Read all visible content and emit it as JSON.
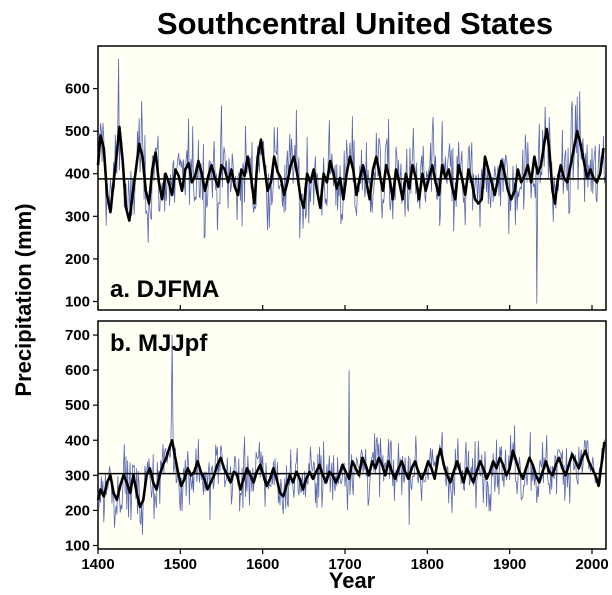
{
  "chart_data": {
    "title": "Southcentral United States",
    "xlabel": "Year",
    "ylabel": "Precipitation (mm)",
    "xlim": [
      1400,
      2017
    ],
    "x_ticks": [
      "1400",
      "1500",
      "1600",
      "1700",
      "1800",
      "1900",
      "2000"
    ],
    "panels": [
      {
        "type": "line",
        "label": "a. DJFMA",
        "ylim": [
          80,
          700
        ],
        "y_ticks": [
          "100",
          "200",
          "300",
          "400",
          "500",
          "600"
        ],
        "mean": 388,
        "annual_color": "#5a68b0",
        "smoothed_color": "#000000",
        "smoothed": [
          [
            1400,
            420
          ],
          [
            1403,
            490
          ],
          [
            1407,
            460
          ],
          [
            1411,
            350
          ],
          [
            1415,
            310
          ],
          [
            1419,
            380
          ],
          [
            1423,
            450
          ],
          [
            1426,
            510
          ],
          [
            1430,
            430
          ],
          [
            1434,
            320
          ],
          [
            1438,
            290
          ],
          [
            1442,
            350
          ],
          [
            1446,
            410
          ],
          [
            1450,
            470
          ],
          [
            1454,
            440
          ],
          [
            1458,
            360
          ],
          [
            1462,
            330
          ],
          [
            1466,
            410
          ],
          [
            1470,
            450
          ],
          [
            1474,
            380
          ],
          [
            1478,
            340
          ],
          [
            1482,
            400
          ],
          [
            1486,
            380
          ],
          [
            1490,
            350
          ],
          [
            1494,
            410
          ],
          [
            1498,
            395
          ],
          [
            1502,
            360
          ],
          [
            1506,
            410
          ],
          [
            1510,
            425
          ],
          [
            1514,
            380
          ],
          [
            1518,
            395
          ],
          [
            1522,
            430
          ],
          [
            1526,
            400
          ],
          [
            1530,
            360
          ],
          [
            1534,
            395
          ],
          [
            1538,
            420
          ],
          [
            1542,
            390
          ],
          [
            1546,
            370
          ],
          [
            1550,
            420
          ],
          [
            1554,
            410
          ],
          [
            1558,
            380
          ],
          [
            1562,
            410
          ],
          [
            1566,
            370
          ],
          [
            1570,
            350
          ],
          [
            1574,
            410
          ],
          [
            1578,
            395
          ],
          [
            1582,
            440
          ],
          [
            1586,
            390
          ],
          [
            1590,
            330
          ],
          [
            1594,
            440
          ],
          [
            1598,
            480
          ],
          [
            1602,
            420
          ],
          [
            1606,
            360
          ],
          [
            1610,
            380
          ],
          [
            1614,
            440
          ],
          [
            1618,
            405
          ],
          [
            1622,
            390
          ],
          [
            1626,
            350
          ],
          [
            1630,
            380
          ],
          [
            1634,
            420
          ],
          [
            1638,
            440
          ],
          [
            1642,
            400
          ],
          [
            1646,
            345
          ],
          [
            1650,
            320
          ],
          [
            1654,
            400
          ],
          [
            1658,
            380
          ],
          [
            1662,
            410
          ],
          [
            1666,
            360
          ],
          [
            1670,
            320
          ],
          [
            1674,
            400
          ],
          [
            1678,
            380
          ],
          [
            1682,
            430
          ],
          [
            1686,
            400
          ],
          [
            1690,
            365
          ],
          [
            1694,
            390
          ],
          [
            1698,
            340
          ],
          [
            1702,
            400
          ],
          [
            1706,
            440
          ],
          [
            1710,
            410
          ],
          [
            1714,
            350
          ],
          [
            1718,
            390
          ],
          [
            1722,
            420
          ],
          [
            1726,
            380
          ],
          [
            1730,
            340
          ],
          [
            1734,
            410
          ],
          [
            1738,
            440
          ],
          [
            1742,
            400
          ],
          [
            1746,
            360
          ],
          [
            1750,
            420
          ],
          [
            1754,
            390
          ],
          [
            1758,
            340
          ],
          [
            1762,
            410
          ],
          [
            1766,
            380
          ],
          [
            1770,
            340
          ],
          [
            1774,
            400
          ],
          [
            1778,
            365
          ],
          [
            1782,
            420
          ],
          [
            1786,
            390
          ],
          [
            1790,
            340
          ],
          [
            1794,
            400
          ],
          [
            1798,
            360
          ],
          [
            1802,
            390
          ],
          [
            1806,
            420
          ],
          [
            1810,
            380
          ],
          [
            1814,
            350
          ],
          [
            1818,
            420
          ],
          [
            1822,
            390
          ],
          [
            1826,
            410
          ],
          [
            1830,
            370
          ],
          [
            1834,
            340
          ],
          [
            1838,
            420
          ],
          [
            1842,
            390
          ],
          [
            1846,
            350
          ],
          [
            1850,
            410
          ],
          [
            1854,
            380
          ],
          [
            1858,
            340
          ],
          [
            1862,
            330
          ],
          [
            1866,
            340
          ],
          [
            1870,
            440
          ],
          [
            1874,
            410
          ],
          [
            1878,
            380
          ],
          [
            1882,
            350
          ],
          [
            1886,
            390
          ],
          [
            1890,
            430
          ],
          [
            1894,
            400
          ],
          [
            1898,
            360
          ],
          [
            1902,
            340
          ],
          [
            1906,
            360
          ],
          [
            1910,
            410
          ],
          [
            1914,
            380
          ],
          [
            1918,
            395
          ],
          [
            1922,
            420
          ],
          [
            1926,
            380
          ],
          [
            1930,
            440
          ],
          [
            1934,
            400
          ],
          [
            1938,
            420
          ],
          [
            1942,
            470
          ],
          [
            1945,
            505
          ],
          [
            1948,
            460
          ],
          [
            1952,
            360
          ],
          [
            1955,
            330
          ],
          [
            1958,
            380
          ],
          [
            1962,
            420
          ],
          [
            1966,
            390
          ],
          [
            1970,
            380
          ],
          [
            1974,
            420
          ],
          [
            1978,
            460
          ],
          [
            1982,
            500
          ],
          [
            1986,
            470
          ],
          [
            1990,
            430
          ],
          [
            1994,
            390
          ],
          [
            1998,
            410
          ],
          [
            2002,
            390
          ],
          [
            2006,
            380
          ],
          [
            2010,
            400
          ],
          [
            2014,
            460
          ]
        ]
      },
      {
        "type": "line",
        "label": "b. MJJpf",
        "ylim": [
          90,
          740
        ],
        "y_ticks": [
          "100",
          "200",
          "300",
          "400",
          "500",
          "600",
          "700"
        ],
        "mean": 305,
        "annual_color": "#5a68b0",
        "smoothed_color": "#000000",
        "smoothed": [
          [
            1400,
            230
          ],
          [
            1403,
            260
          ],
          [
            1407,
            240
          ],
          [
            1411,
            280
          ],
          [
            1415,
            300
          ],
          [
            1419,
            250
          ],
          [
            1423,
            230
          ],
          [
            1427,
            270
          ],
          [
            1431,
            300
          ],
          [
            1435,
            280
          ],
          [
            1439,
            250
          ],
          [
            1443,
            300
          ],
          [
            1447,
            250
          ],
          [
            1451,
            210
          ],
          [
            1455,
            230
          ],
          [
            1459,
            300
          ],
          [
            1463,
            320
          ],
          [
            1467,
            280
          ],
          [
            1471,
            260
          ],
          [
            1475,
            300
          ],
          [
            1479,
            330
          ],
          [
            1483,
            350
          ],
          [
            1487,
            380
          ],
          [
            1490,
            400
          ],
          [
            1493,
            360
          ],
          [
            1497,
            310
          ],
          [
            1501,
            270
          ],
          [
            1505,
            290
          ],
          [
            1509,
            320
          ],
          [
            1513,
            300
          ],
          [
            1517,
            310
          ],
          [
            1521,
            340
          ],
          [
            1525,
            310
          ],
          [
            1529,
            290
          ],
          [
            1533,
            260
          ],
          [
            1537,
            280
          ],
          [
            1541,
            300
          ],
          [
            1545,
            330
          ],
          [
            1549,
            350
          ],
          [
            1553,
            320
          ],
          [
            1557,
            300
          ],
          [
            1561,
            280
          ],
          [
            1565,
            310
          ],
          [
            1569,
            300
          ],
          [
            1573,
            260
          ],
          [
            1577,
            290
          ],
          [
            1581,
            320
          ],
          [
            1585,
            300
          ],
          [
            1589,
            280
          ],
          [
            1593,
            310
          ],
          [
            1597,
            330
          ],
          [
            1601,
            300
          ],
          [
            1605,
            270
          ],
          [
            1609,
            290
          ],
          [
            1613,
            320
          ],
          [
            1617,
            290
          ],
          [
            1621,
            250
          ],
          [
            1625,
            240
          ],
          [
            1629,
            270
          ],
          [
            1633,
            300
          ],
          [
            1637,
            280
          ],
          [
            1641,
            310
          ],
          [
            1645,
            290
          ],
          [
            1649,
            260
          ],
          [
            1653,
            290
          ],
          [
            1657,
            310
          ],
          [
            1661,
            290
          ],
          [
            1665,
            310
          ],
          [
            1669,
            330
          ],
          [
            1673,
            300
          ],
          [
            1677,
            280
          ],
          [
            1681,
            310
          ],
          [
            1685,
            300
          ],
          [
            1689,
            280
          ],
          [
            1693,
            300
          ],
          [
            1697,
            330
          ],
          [
            1701,
            310
          ],
          [
            1705,
            290
          ],
          [
            1709,
            340
          ],
          [
            1713,
            320
          ],
          [
            1717,
            300
          ],
          [
            1721,
            350
          ],
          [
            1725,
            330
          ],
          [
            1729,
            300
          ],
          [
            1733,
            340
          ],
          [
            1737,
            320
          ],
          [
            1741,
            350
          ],
          [
            1745,
            330
          ],
          [
            1749,
            300
          ],
          [
            1753,
            340
          ],
          [
            1757,
            310
          ],
          [
            1761,
            290
          ],
          [
            1765,
            320
          ],
          [
            1769,
            340
          ],
          [
            1773,
            310
          ],
          [
            1777,
            290
          ],
          [
            1781,
            320
          ],
          [
            1785,
            340
          ],
          [
            1789,
            310
          ],
          [
            1793,
            290
          ],
          [
            1797,
            310
          ],
          [
            1801,
            340
          ],
          [
            1805,
            320
          ],
          [
            1809,
            290
          ],
          [
            1813,
            350
          ],
          [
            1816,
            375
          ],
          [
            1820,
            330
          ],
          [
            1824,
            300
          ],
          [
            1828,
            280
          ],
          [
            1832,
            310
          ],
          [
            1836,
            340
          ],
          [
            1840,
            310
          ],
          [
            1844,
            280
          ],
          [
            1848,
            320
          ],
          [
            1852,
            300
          ],
          [
            1856,
            280
          ],
          [
            1860,
            310
          ],
          [
            1864,
            340
          ],
          [
            1868,
            320
          ],
          [
            1872,
            290
          ],
          [
            1876,
            310
          ],
          [
            1880,
            340
          ],
          [
            1884,
            320
          ],
          [
            1888,
            350
          ],
          [
            1892,
            330
          ],
          [
            1896,
            300
          ],
          [
            1900,
            320
          ],
          [
            1904,
            370
          ],
          [
            1908,
            340
          ],
          [
            1912,
            310
          ],
          [
            1916,
            290
          ],
          [
            1920,
            320
          ],
          [
            1924,
            350
          ],
          [
            1928,
            330
          ],
          [
            1932,
            300
          ],
          [
            1936,
            280
          ],
          [
            1940,
            310
          ],
          [
            1944,
            340
          ],
          [
            1948,
            310
          ],
          [
            1952,
            300
          ],
          [
            1956,
            330
          ],
          [
            1960,
            350
          ],
          [
            1964,
            320
          ],
          [
            1968,
            300
          ],
          [
            1972,
            330
          ],
          [
            1976,
            360
          ],
          [
            1980,
            340
          ],
          [
            1984,
            320
          ],
          [
            1988,
            350
          ],
          [
            1992,
            370
          ],
          [
            1996,
            340
          ],
          [
            2000,
            320
          ],
          [
            2004,
            300
          ],
          [
            2008,
            270
          ],
          [
            2012,
            340
          ],
          [
            2015,
            395
          ]
        ]
      }
    ]
  }
}
